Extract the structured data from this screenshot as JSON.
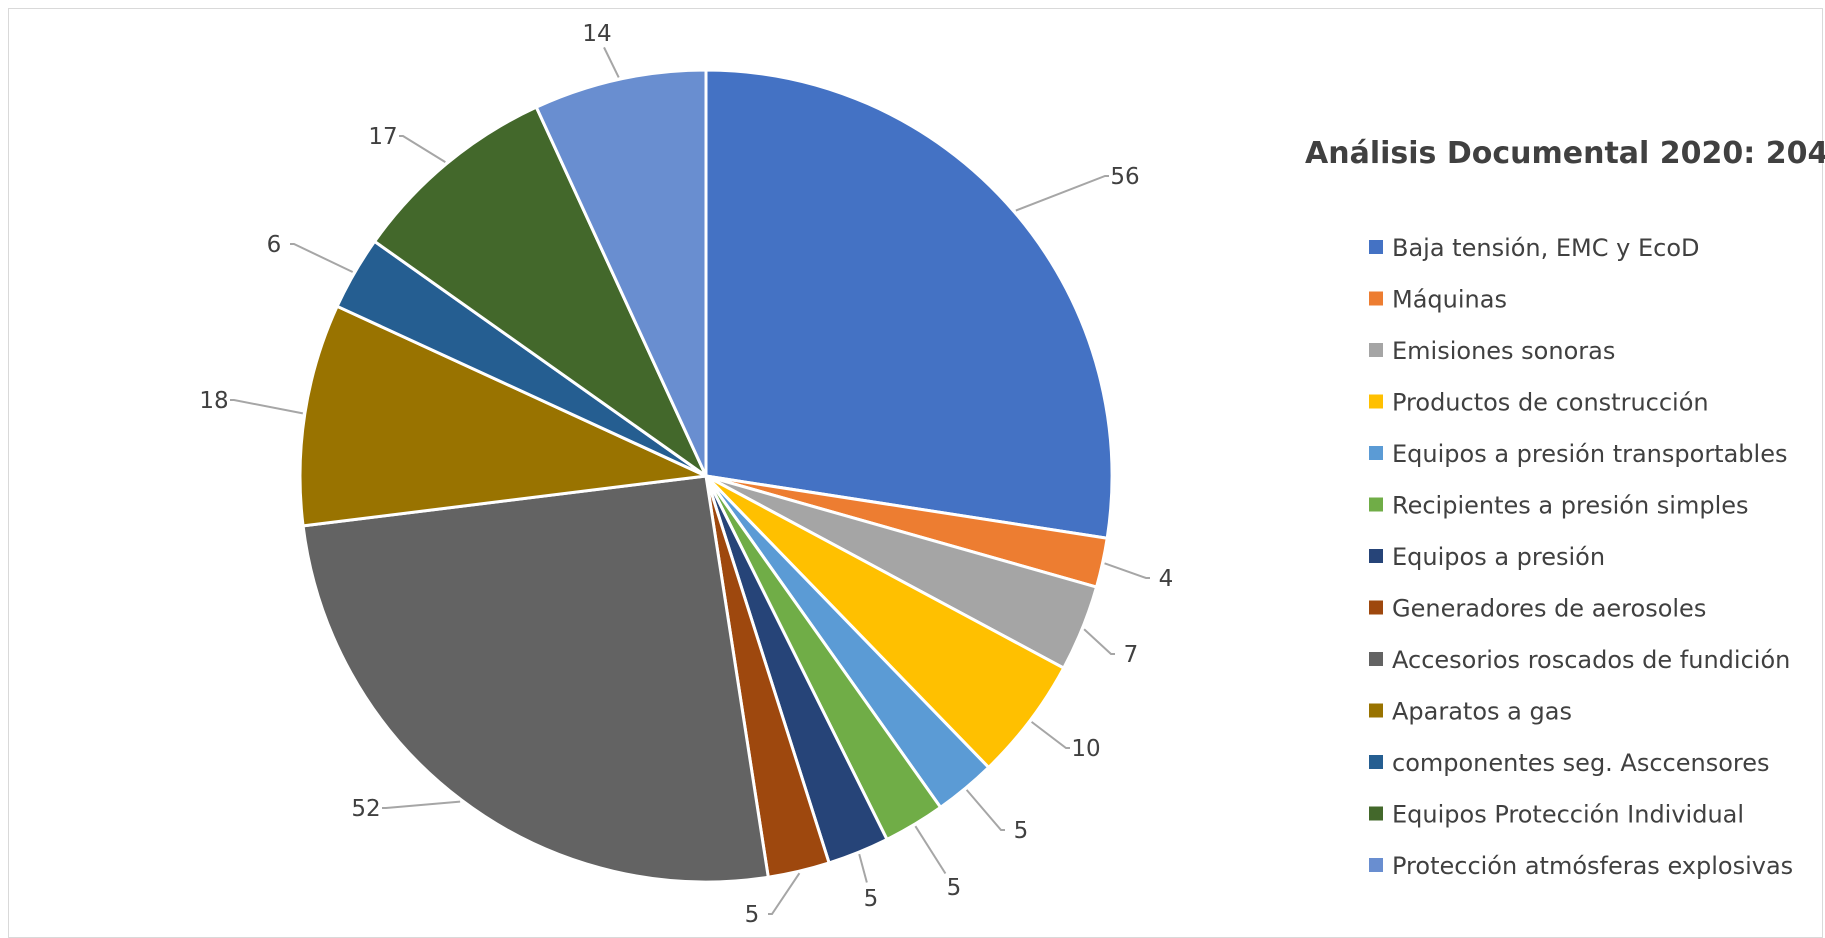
{
  "chart_data": {
    "type": "pie",
    "title": "Análisis Documental 2020: 204",
    "legend_position": "right",
    "start_angle_deg": 0,
    "direction": "clockwise",
    "series": [
      {
        "name": "Baja tensión, EMC y EcoD",
        "value": 56,
        "color": "#4472C4"
      },
      {
        "name": "Máquinas",
        "value": 4,
        "color": "#ED7D31"
      },
      {
        "name": "Emisiones sonoras",
        "value": 7,
        "color": "#A5A5A5"
      },
      {
        "name": "Productos de construcción",
        "value": 10,
        "color": "#FFC000"
      },
      {
        "name": "Equipos a presión transportables",
        "value": 5,
        "color": "#5B9BD5"
      },
      {
        "name": "Recipientes a presión simples",
        "value": 5,
        "color": "#70AD47"
      },
      {
        "name": "Equipos a presión",
        "value": 5,
        "color": "#264478"
      },
      {
        "name": "Generadores de aerosoles",
        "value": 5,
        "color": "#9E480E"
      },
      {
        "name": "Accesorios roscados de fundición",
        "value": 52,
        "color": "#636363"
      },
      {
        "name": "Aparatos a gas",
        "value": 18,
        "color": "#997300"
      },
      {
        "name": "componentes seg. Asccensores",
        "value": 6,
        "color": "#255E91"
      },
      {
        "name": "Equipos Protección Individual",
        "value": 17,
        "color": "#43682B"
      },
      {
        "name": "Protección atmósferas explosivas",
        "value": 14,
        "color": "#698ED0"
      }
    ]
  }
}
